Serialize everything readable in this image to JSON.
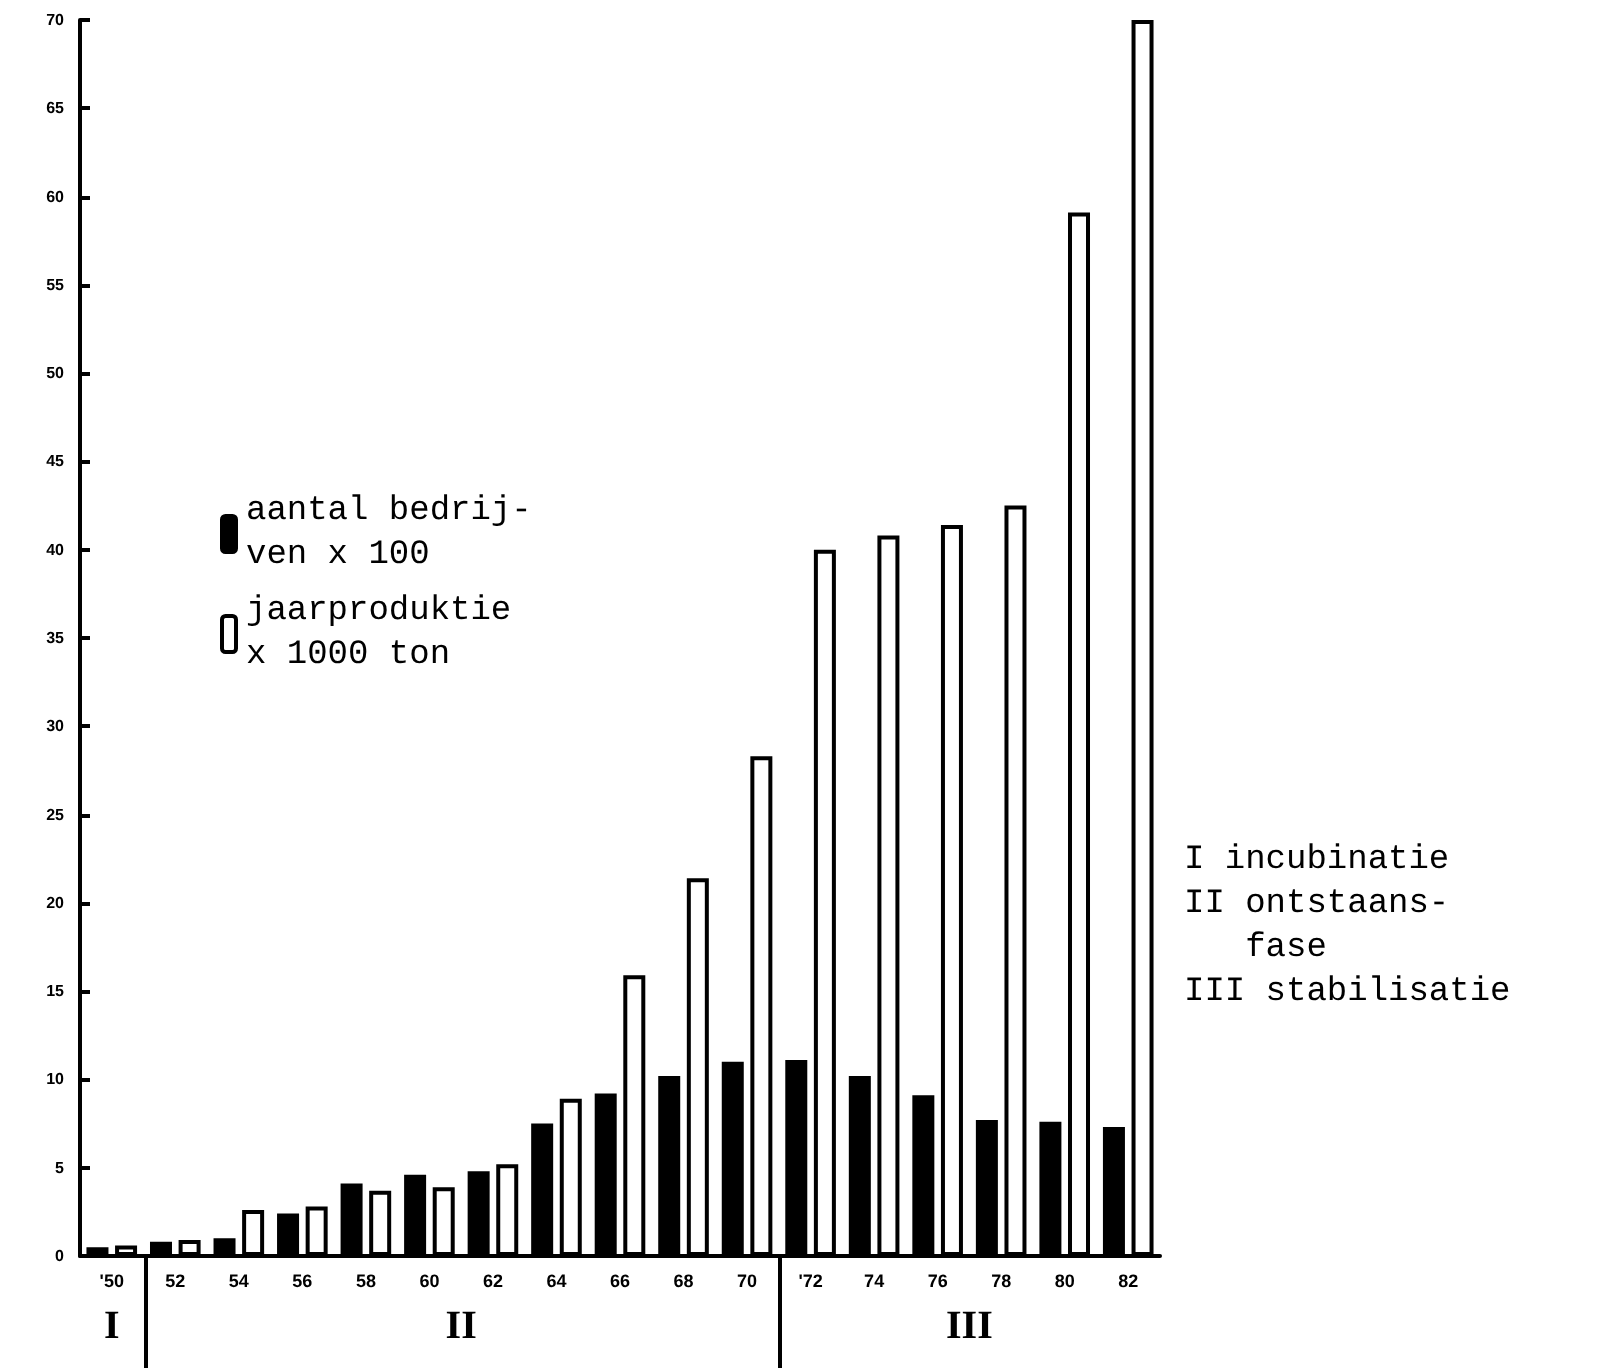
{
  "chart_data": {
    "type": "bar",
    "categories": [
      "'50",
      "52",
      "54",
      "56",
      "58",
      "60",
      "62",
      "64",
      "66",
      "68",
      "70",
      "'72",
      "74",
      "76",
      "78",
      "80",
      "82"
    ],
    "series": [
      {
        "name": "aantal bedrij-\nven x 100",
        "color": "#000000",
        "values": [
          0.5,
          0.8,
          1,
          2.4,
          4.1,
          4.6,
          4.8,
          7.5,
          9.2,
          10.2,
          11,
          11.1,
          10.2,
          9.1,
          7.7,
          7.6,
          7.3
        ]
      },
      {
        "name": "jaarproduktie\nx 1000 ton",
        "color": "#ffffff",
        "values": [
          0.6,
          0.9,
          2.6,
          2.8,
          3.7,
          3.9,
          5.2,
          8.9,
          15.9,
          21.4,
          28.3,
          40,
          40.8,
          41.4,
          42.5,
          59.1,
          70
        ]
      }
    ],
    "ylim": [
      0,
      70
    ],
    "yticks": [
      0,
      5,
      10,
      15,
      20,
      25,
      30,
      35,
      40,
      45,
      50,
      55,
      60,
      65,
      70
    ],
    "grid": false,
    "legend": "left",
    "annotations": [
      "I",
      "II",
      "III",
      "I incubinatie",
      "II ontstaans-\n   fase",
      "III stabilisatie"
    ]
  }
}
